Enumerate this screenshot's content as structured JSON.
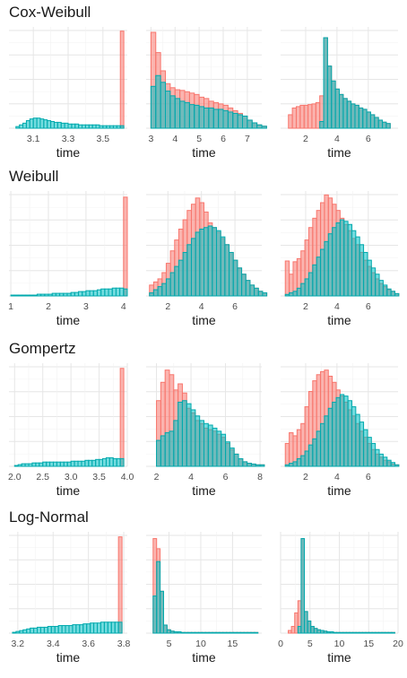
{
  "colors": {
    "series_a": "#F8766D",
    "series_b": "#00BFC4",
    "grid": "#E6E6E6"
  },
  "chart_data": [
    {
      "panel": "cox-weibull-1",
      "row_title": "Cox-Weibull",
      "type": "bar",
      "xlabel": "time",
      "xlim": [
        2.96,
        3.64
      ],
      "xticks": [
        3.1,
        3.3,
        3.5
      ],
      "x0": 3.0,
      "bin_width": 0.02,
      "ymax": 120,
      "series": [
        {
          "values": [
            0,
            0,
            0,
            0,
            0,
            0,
            0,
            0,
            0,
            0,
            0,
            0,
            0,
            0,
            0,
            0,
            0,
            0,
            0,
            0,
            0,
            0,
            0,
            0,
            0,
            0,
            0,
            0,
            0,
            0,
            115
          ]
        },
        {
          "values": [
            2,
            4,
            6,
            9,
            11,
            12,
            12,
            11,
            10,
            9,
            8,
            7,
            7,
            6,
            6,
            5,
            5,
            5,
            4,
            4,
            4,
            4,
            4,
            4,
            3,
            3,
            3,
            3,
            3,
            3,
            3
          ]
        }
      ]
    },
    {
      "panel": "cox-weibull-2",
      "type": "bar",
      "xlabel": "time",
      "xlim": [
        2.8,
        7.6
      ],
      "xticks": [
        3,
        4,
        5,
        6,
        7
      ],
      "x0": 3.0,
      "bin_width": 0.2,
      "ymax": 150,
      "series": [
        {
          "values": [
            142,
            112,
            85,
            66,
            60,
            57,
            56,
            54,
            52,
            50,
            46,
            44,
            40,
            38,
            36,
            34,
            30,
            26,
            22,
            18,
            12,
            8,
            5,
            3
          ]
        },
        {
          "values": [
            62,
            78,
            68,
            55,
            48,
            44,
            40,
            38,
            35,
            34,
            32,
            30,
            30,
            28,
            28,
            26,
            24,
            22,
            20,
            18,
            12,
            8,
            5,
            3
          ]
        }
      ]
    },
    {
      "panel": "cox-weibull-3",
      "type": "bar",
      "xlabel": "time",
      "xlim": [
        0.4,
        7.9
      ],
      "xticks": [
        2,
        4,
        6
      ],
      "x0": 0.9,
      "bin_width": 0.25,
      "ymax": 150,
      "series": [
        {
          "values": [
            20,
            30,
            32,
            34,
            34,
            35,
            36,
            38,
            48,
            134,
            92,
            70,
            58,
            50,
            44,
            40,
            36,
            34,
            30,
            28,
            24,
            20,
            16,
            12,
            9,
            7,
            0
          ]
        },
        {
          "values": [
            0,
            0,
            0,
            0,
            0,
            0,
            0,
            0,
            10,
            134,
            92,
            70,
            58,
            50,
            44,
            40,
            36,
            34,
            30,
            28,
            24,
            20,
            16,
            12,
            9,
            7,
            0
          ]
        }
      ]
    },
    {
      "panel": "weibull-1",
      "row_title": "Weibull",
      "type": "bar",
      "xlabel": "time",
      "xlim": [
        0.95,
        4.1
      ],
      "xticks": [
        1,
        2,
        3,
        4
      ],
      "x0": 1.0,
      "bin_width": 0.1,
      "ymax": 120,
      "series": [
        {
          "values": [
            0,
            0,
            0,
            0,
            0,
            0,
            0,
            0,
            0,
            0,
            0,
            0,
            0,
            0,
            0,
            0,
            0,
            0,
            0,
            0,
            0,
            0,
            0,
            0,
            0,
            0,
            0,
            0,
            0,
            0,
            113
          ]
        },
        {
          "values": [
            1,
            1,
            1,
            1,
            1,
            1,
            1,
            2,
            2,
            2,
            2,
            3,
            3,
            3,
            3,
            3,
            4,
            4,
            5,
            5,
            6,
            6,
            6,
            7,
            8,
            8,
            8,
            9,
            9,
            9,
            8
          ]
        }
      ]
    },
    {
      "panel": "weibull-2",
      "type": "bar",
      "xlabel": "time",
      "xlim": [
        0.7,
        7.6
      ],
      "xticks": [
        2,
        4,
        6
      ],
      "x0": 0.9,
      "bin_width": 0.25,
      "ymax": 135,
      "series": [
        {
          "values": [
            14,
            18,
            22,
            30,
            42,
            58,
            72,
            86,
            98,
            110,
            118,
            126,
            120,
            108,
            94,
            88,
            82,
            74,
            66,
            56,
            46,
            36,
            28,
            20,
            14,
            10,
            6,
            4
          ]
        },
        {
          "values": [
            4,
            8,
            12,
            16,
            22,
            30,
            38,
            46,
            56,
            66,
            74,
            82,
            86,
            88,
            90,
            88,
            84,
            76,
            66,
            56,
            46,
            36,
            28,
            20,
            14,
            10,
            6,
            4
          ]
        }
      ]
    },
    {
      "panel": "weibull-3",
      "type": "bar",
      "xlabel": "time",
      "xlim": [
        0.4,
        7.9
      ],
      "xticks": [
        2,
        4,
        6
      ],
      "x0": 0.7,
      "bin_width": 0.25,
      "ymax": 135,
      "series": [
        {
          "values": [
            45,
            28,
            44,
            48,
            58,
            72,
            88,
            100,
            110,
            120,
            130,
            126,
            118,
            110,
            100,
            92,
            84,
            74,
            66,
            56,
            46,
            38,
            30,
            22,
            16,
            12,
            8,
            6,
            3
          ]
        },
        {
          "values": [
            2,
            4,
            6,
            10,
            16,
            22,
            30,
            40,
            50,
            60,
            70,
            80,
            88,
            94,
            98,
            96,
            92,
            84,
            76,
            66,
            56,
            46,
            36,
            28,
            20,
            14,
            9,
            6,
            3
          ]
        }
      ]
    },
    {
      "panel": "gompertz-1",
      "row_title": "Gompertz",
      "type": "bar",
      "xlabel": "time",
      "xlim": [
        1.9,
        4.0
      ],
      "xticks": [
        2.0,
        2.5,
        3.0,
        3.5,
        4.0
      ],
      "x0": 2.0,
      "bin_width": 0.0625,
      "ymax": 120,
      "series": [
        {
          "values": [
            0,
            0,
            0,
            0,
            0,
            0,
            0,
            0,
            0,
            0,
            0,
            0,
            0,
            0,
            0,
            0,
            0,
            0,
            0,
            0,
            0,
            0,
            0,
            0,
            0,
            0,
            0,
            0,
            0,
            0,
            114
          ]
        },
        {
          "values": [
            1,
            2,
            3,
            3,
            3,
            4,
            4,
            4,
            5,
            5,
            5,
            5,
            5,
            5,
            5,
            5,
            6,
            6,
            6,
            6,
            7,
            7,
            7,
            8,
            8,
            9,
            10,
            10,
            9,
            9,
            9
          ]
        }
      ]
    },
    {
      "panel": "gompertz-2",
      "type": "bar",
      "xlabel": "time",
      "xlim": [
        1.4,
        8.1
      ],
      "xticks": [
        2,
        4,
        6,
        8
      ],
      "x0": 2.0,
      "bin_width": 0.25,
      "ymax": 135,
      "series": [
        {
          "values": [
            86,
            110,
            126,
            120,
            100,
            108,
            96,
            76,
            70,
            60,
            56,
            50,
            48,
            46,
            42,
            38,
            30,
            22,
            16,
            10,
            6,
            4,
            3,
            2,
            2
          ]
        },
        {
          "values": [
            34,
            40,
            44,
            46,
            60,
            84,
            86,
            82,
            74,
            66,
            60,
            56,
            54,
            50,
            46,
            42,
            32,
            24,
            16,
            10,
            6,
            4,
            3,
            2,
            2
          ]
        }
      ]
    },
    {
      "panel": "gompertz-3",
      "type": "bar",
      "xlabel": "time",
      "xlim": [
        0.4,
        7.9
      ],
      "xticks": [
        2,
        4,
        6
      ],
      "x0": 0.7,
      "bin_width": 0.25,
      "ymax": 135,
      "series": [
        {
          "values": [
            30,
            44,
            40,
            48,
            56,
            78,
            98,
            112,
            120,
            124,
            126,
            118,
            110,
            100,
            92,
            84,
            74,
            66,
            56,
            46,
            38,
            30,
            22,
            16,
            12,
            8,
            6,
            3,
            2
          ]
        },
        {
          "values": [
            2,
            4,
            6,
            10,
            14,
            20,
            28,
            36,
            46,
            56,
            66,
            76,
            84,
            90,
            94,
            92,
            86,
            78,
            68,
            58,
            48,
            38,
            30,
            22,
            16,
            12,
            8,
            5,
            2
          ]
        }
      ]
    },
    {
      "panel": "log-normal-1",
      "row_title": "Log-Normal",
      "type": "bar",
      "xlabel": "time",
      "xlim": [
        3.15,
        3.82
      ],
      "xticks": [
        3.2,
        3.4,
        3.6,
        3.8
      ],
      "x0": 3.17,
      "bin_width": 0.02,
      "ymax": 120,
      "series": [
        {
          "values": [
            0,
            0,
            0,
            0,
            0,
            0,
            0,
            0,
            0,
            0,
            0,
            0,
            0,
            0,
            0,
            0,
            0,
            0,
            0,
            0,
            0,
            0,
            0,
            0,
            0,
            0,
            0,
            0,
            0,
            0,
            114
          ]
        },
        {
          "values": [
            1,
            2,
            3,
            4,
            5,
            6,
            6,
            7,
            7,
            7,
            8,
            8,
            8,
            9,
            9,
            9,
            9,
            10,
            10,
            10,
            11,
            11,
            12,
            12,
            12,
            13,
            13,
            13,
            13,
            13,
            13
          ]
        }
      ]
    },
    {
      "panel": "log-normal-2",
      "type": "bar",
      "xlabel": "time",
      "xlim": [
        1.4,
        19.6
      ],
      "xticks": [
        5,
        10,
        15
      ],
      "x0": 2.5,
      "bin_width": 0.55,
      "ymax": 150,
      "series": [
        {
          "values": [
            140,
            125,
            62,
            12,
            5,
            3,
            2,
            2,
            1,
            1,
            1,
            1,
            1,
            1,
            1,
            1,
            1,
            1,
            1,
            1,
            1,
            1,
            1,
            1,
            1,
            1,
            1,
            1,
            1,
            1
          ]
        },
        {
          "values": [
            55,
            106,
            62,
            12,
            5,
            3,
            2,
            2,
            1,
            1,
            1,
            1,
            1,
            1,
            1,
            1,
            1,
            1,
            1,
            1,
            1,
            1,
            1,
            1,
            1,
            1,
            1,
            1,
            1,
            1
          ]
        }
      ]
    },
    {
      "panel": "log-normal-3",
      "type": "bar",
      "xlabel": "time",
      "xlim": [
        0,
        20
      ],
      "xticks": [
        0,
        5,
        10,
        15,
        20
      ],
      "x0": 1.3,
      "bin_width": 0.55,
      "ymax": 150,
      "series": [
        {
          "values": [
            4,
            10,
            30,
            48,
            140,
            32,
            18,
            10,
            7,
            5,
            4,
            3,
            2,
            2,
            1,
            1,
            1,
            1,
            1,
            1,
            1,
            1,
            1,
            1,
            1,
            1,
            1,
            1,
            1,
            1,
            1,
            1,
            1
          ]
        },
        {
          "values": [
            0,
            0,
            0,
            10,
            140,
            32,
            18,
            10,
            7,
            5,
            4,
            3,
            2,
            2,
            1,
            1,
            1,
            1,
            1,
            1,
            1,
            1,
            1,
            1,
            1,
            1,
            1,
            1,
            1,
            1,
            1,
            1,
            1
          ]
        }
      ]
    }
  ]
}
